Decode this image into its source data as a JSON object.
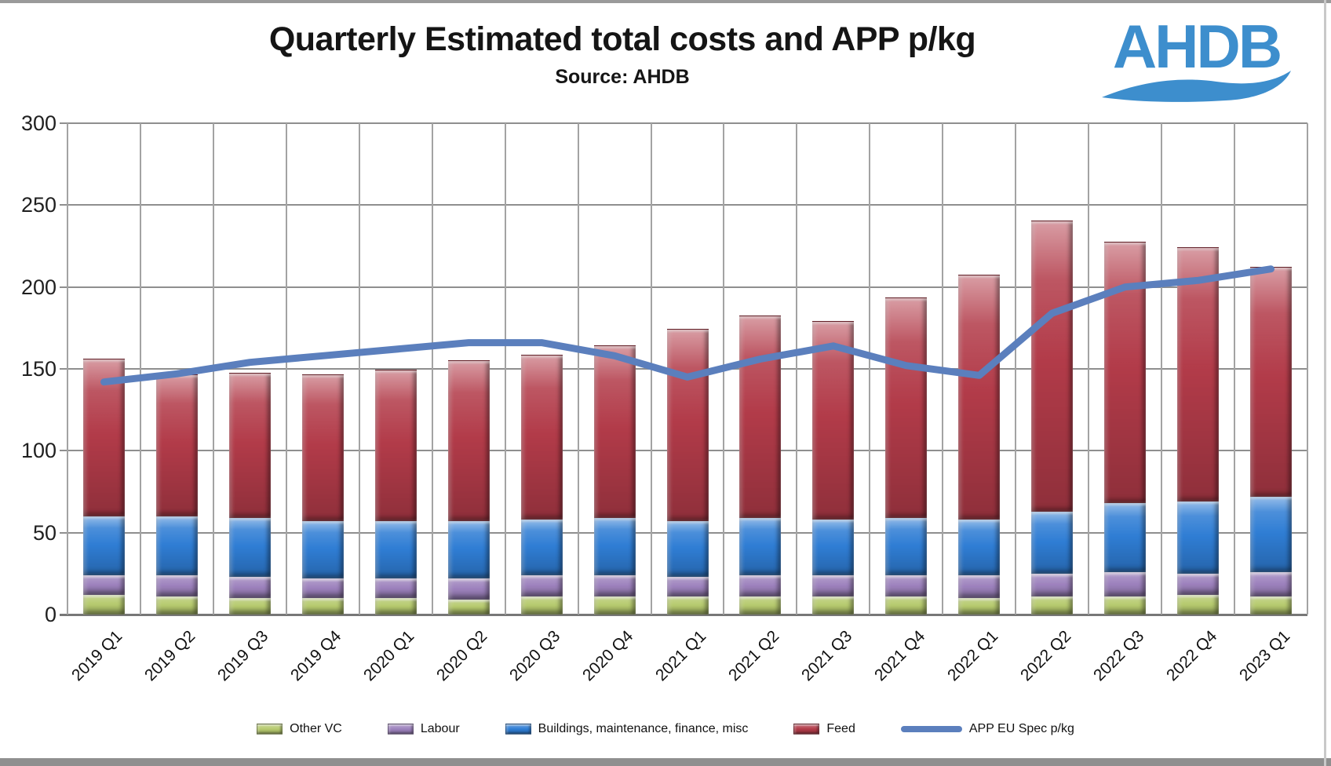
{
  "header": {
    "title": "Quarterly Estimated total costs and APP p/kg",
    "subtitle": "Source: AHDB",
    "logo_text": "AHDB"
  },
  "colors": {
    "other_vc": "#b6ca6e",
    "labour": "#9d82bd",
    "buildings": "#2f7dd4",
    "feed": "#b23b49",
    "line": "#5b7fbd",
    "gridline": "#8f8f8f",
    "logo_blue": "#3d8ecd"
  },
  "chart_data": {
    "type": "stacked-bar+line",
    "title": "Quarterly Estimated total costs and APP p/kg",
    "subtitle": "Source: AHDB",
    "categories": [
      "2019 Q1",
      "2019 Q2",
      "2019 Q3",
      "2019 Q4",
      "2020 Q1",
      "2020 Q2",
      "2020 Q3",
      "2020 Q4",
      "2021 Q1",
      "2021 Q2",
      "2021 Q3",
      "2021 Q4",
      "2022 Q1",
      "2022 Q2",
      "2022 Q3",
      "2022 Q4",
      "2023 Q1"
    ],
    "series": [
      {
        "name": "Other VC",
        "type": "bar",
        "color": "#b6ca6e",
        "values": [
          12,
          11,
          10,
          10,
          10,
          9,
          11,
          11,
          11,
          11,
          11,
          11,
          10,
          11,
          11,
          12,
          11
        ]
      },
      {
        "name": "Labour",
        "type": "bar",
        "color": "#9d82bd",
        "values": [
          12,
          13,
          13,
          12,
          12,
          13,
          13,
          13,
          12,
          13,
          13,
          13,
          14,
          14,
          15,
          13,
          15
        ]
      },
      {
        "name": "Buildings, maintenance, finance, misc",
        "type": "bar",
        "color": "#2f7dd4",
        "values": [
          36,
          36,
          36,
          35,
          35,
          35,
          34,
          35,
          34,
          35,
          34,
          35,
          34,
          38,
          42,
          44,
          46
        ]
      },
      {
        "name": "Feed",
        "type": "bar",
        "color": "#b23b49",
        "values": [
          96,
          86,
          88,
          89,
          92,
          98,
          100,
          105,
          117,
          123,
          121,
          134,
          149,
          177,
          159,
          155,
          140
        ]
      }
    ],
    "line_series": {
      "name": "APP EU Spec p/kg",
      "color": "#5b7fbd",
      "values": [
        142,
        147,
        154,
        158,
        162,
        166,
        166,
        158,
        145,
        156,
        164,
        152,
        146,
        184,
        200,
        204,
        211
      ]
    },
    "stacked_totals": [
      156,
      146,
      147,
      146,
      149,
      155,
      158,
      164,
      174,
      182,
      179,
      193,
      207,
      240,
      227,
      224,
      212
    ],
    "ylim": [
      0,
      300
    ],
    "yticks": [
      0,
      50,
      100,
      150,
      200,
      250,
      300
    ],
    "xlabel": "",
    "ylabel": "",
    "grid": true,
    "legend_position": "bottom"
  }
}
